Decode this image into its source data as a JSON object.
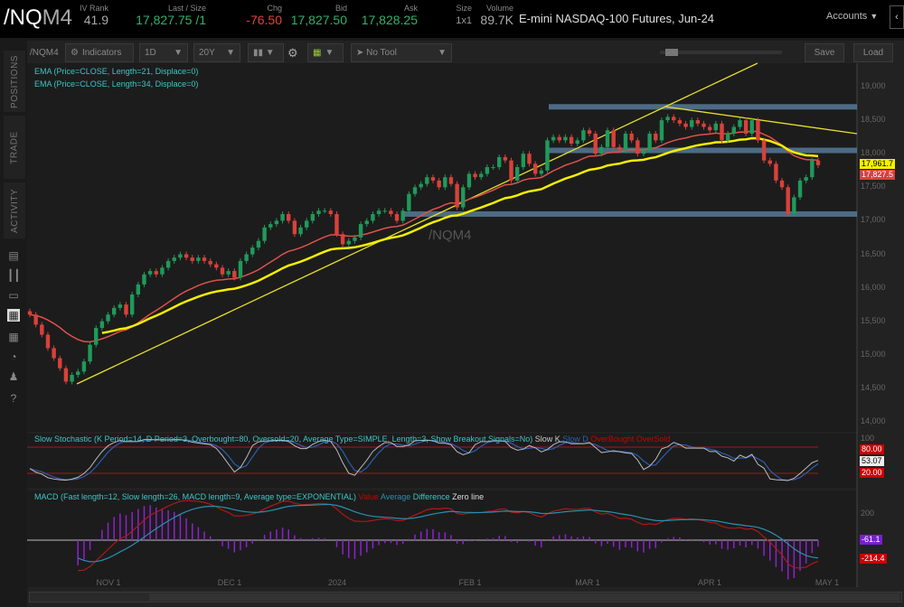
{
  "header": {
    "symbol_prefix": "/NQ",
    "symbol_suffix": "M4",
    "fields": [
      {
        "label": "IV Rank",
        "value": "41.9"
      },
      {
        "label": "Last / Size",
        "value": "17,827.75 /1"
      },
      {
        "label": "Chg",
        "value": "-76.50"
      },
      {
        "label": "Bid",
        "value": "17,827.50"
      },
      {
        "label": "Ask",
        "value": "17,828.25"
      },
      {
        "label": "Size",
        "value": "1x1"
      },
      {
        "label": "Volume",
        "value": "89.7K"
      }
    ],
    "description": "E-mini NASDAQ-100 Futures, Jun-24",
    "accounts": "Accounts"
  },
  "sidebar": {
    "tabs": [
      "POSITIONS",
      "TRADE",
      "ACTIVITY"
    ],
    "icons": [
      "watchlist-icon",
      "columns-icon",
      "tv-icon",
      "chart-icon",
      "grid-icon",
      "history-icon",
      "community-icon",
      "help-icon"
    ]
  },
  "toolbar": {
    "symbol": "/NQM4",
    "indicators": "Indicators",
    "timeframe": "1D",
    "range": "20Y",
    "tool": "No Tool",
    "save": "Save",
    "load": "Load"
  },
  "studies": {
    "ema21": "EMA (Price=CLOSE, Length=21, Displace=0)",
    "ema34": "EMA (Price=CLOSE, Length=34, Displace=0)",
    "stoch": "Slow Stochastic (K Period=14, D Period=3, Overbought=80, Oversold=20, Average Type=SIMPLE, Length=3, Show Breakout Signals=No)",
    "stoch_legend": [
      "Slow K",
      "Slow D",
      "OverBought",
      "OverSold"
    ],
    "macd": "MACD (Fast length=12, Slow length=26, MACD length=9, Average type=EXPONENTIAL)",
    "macd_legend": [
      "Value",
      "Average",
      "Difference",
      "Zero line"
    ]
  },
  "watermark": "/NQM4",
  "price_axis": [
    "19,000",
    "18,500",
    "18,000",
    "17,500",
    "17,000",
    "16,500",
    "16,000",
    "15,500",
    "15,000",
    "14,500",
    "14,000"
  ],
  "price_tags": {
    "ema": "17,961.7",
    "last": "17,827.5"
  },
  "stoch_axis": {
    "top": "100",
    "ob": "80.00",
    "k": "53.07",
    "os": "20.00"
  },
  "macd_axis": {
    "top": "200",
    "diff": "-61.1",
    "value": "-214.4"
  },
  "date_axis": [
    "NOV 1",
    "DEC 1",
    "2024",
    "FEB 1",
    "MAR 1",
    "APR 1",
    "MAY 1"
  ],
  "colors": {
    "up": "#1f9a5a",
    "down": "#d9413b",
    "ema21": "#e0504a",
    "ema34": "#f5f000",
    "trend": "#e6df2a",
    "band": "#5a7fa0",
    "cyan": "#3cc6c6"
  },
  "chart_data": {
    "type": "candlestick",
    "closes": [
      15600,
      15450,
      15300,
      15100,
      14950,
      14800,
      14600,
      14700,
      14750,
      14900,
      15150,
      15400,
      15500,
      15600,
      15700,
      15750,
      15600,
      15900,
      16050,
      16200,
      16250,
      16200,
      16300,
      16400,
      16450,
      16500,
      16450,
      16400,
      16450,
      16400,
      16350,
      16300,
      16200,
      16250,
      16150,
      16400,
      16500,
      16600,
      16700,
      16900,
      16950,
      17000,
      17100,
      17000,
      16800,
      16900,
      17000,
      17100,
      17150,
      17150,
      17100,
      16800,
      16650,
      16700,
      16750,
      16950,
      17000,
      17100,
      17150,
      17150,
      17100,
      17000,
      17150,
      17400,
      17500,
      17550,
      17650,
      17600,
      17500,
      17650,
      17550,
      17200,
      17500,
      17700,
      17650,
      17700,
      17800,
      17800,
      17950,
      17900,
      17600,
      17800,
      18000,
      17850,
      17700,
      17750,
      18200,
      18250,
      18200,
      18250,
      18150,
      18200,
      18350,
      18300,
      18000,
      18100,
      18350,
      18100,
      18050,
      18300,
      18200,
      18000,
      18050,
      18300,
      18200,
      18500,
      18550,
      18500,
      18450,
      18400,
      18500,
      18450,
      18400,
      18350,
      18450,
      18200,
      18300,
      18400,
      18500,
      18300,
      18500,
      18200,
      17900,
      17850,
      17600,
      17500,
      17100,
      17350,
      17600,
      17650,
      17900,
      17830
    ],
    "support_resistance": [
      18700,
      18050,
      17100
    ],
    "ylim": [
      14000,
      19000
    ]
  }
}
